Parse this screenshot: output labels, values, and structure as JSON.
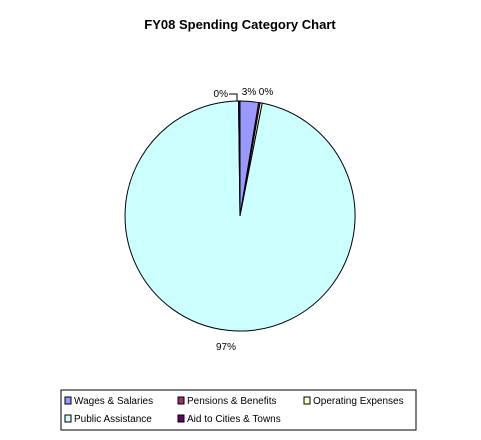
{
  "chart_data": {
    "type": "pie",
    "title": "FY08 Spending Category Chart",
    "slices": [
      {
        "name": "Wages & Salaries",
        "value": 2.6,
        "label": "3%",
        "color": "#9999ff"
      },
      {
        "name": "Pensions & Benefits",
        "value": 0.2,
        "label": "0%",
        "color": "#993366"
      },
      {
        "name": "Operating Expenses",
        "value": 0.3,
        "label": "0%",
        "color": "#ffffcc"
      },
      {
        "name": "Public Assistance",
        "value": 96.7,
        "label": "97%",
        "color": "#ccffff"
      },
      {
        "name": "Aid to Cities & Towns",
        "value": 0.2,
        "label": "0%",
        "color": "#660066"
      }
    ],
    "legend_placement": "bottom"
  }
}
